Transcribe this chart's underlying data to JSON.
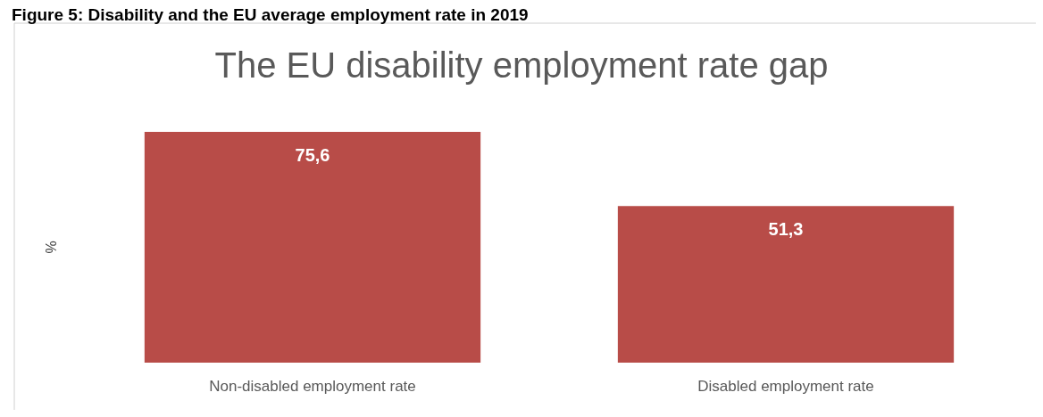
{
  "chart_data": {
    "type": "bar",
    "title": "Figure 5: Disability and the EU average employment rate in 2019",
    "subtitle": "The EU disability employment rate gap",
    "ylabel": "%",
    "categories": [
      "Non-disabled employment rate",
      "Disabled employment rate"
    ],
    "values": [
      75.6,
      51.3
    ],
    "color": "#b84c48",
    "value_labels": [
      "75,6",
      "51,3"
    ]
  }
}
